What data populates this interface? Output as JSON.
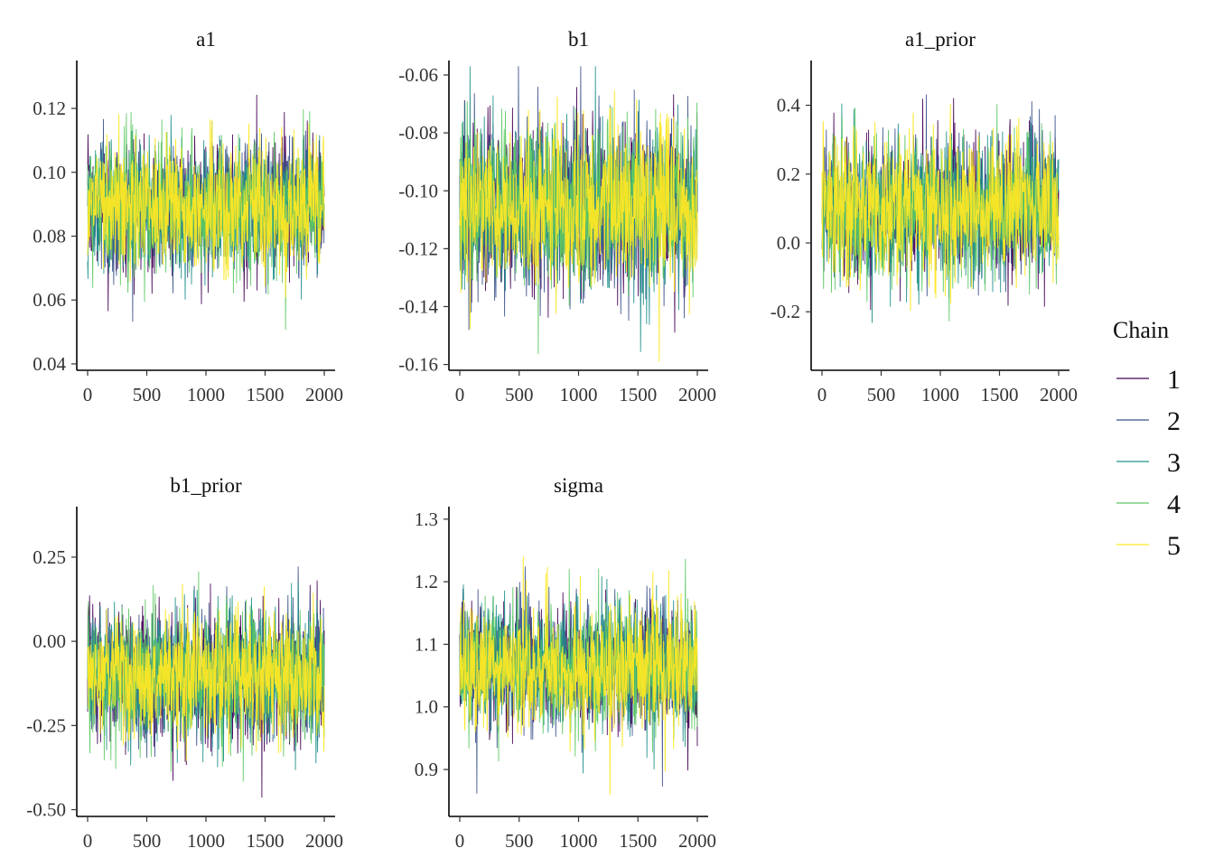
{
  "chart_data": {
    "type": "line",
    "chart_kind": "mcmc-trace",
    "legend": {
      "title": "Chain",
      "placement": "right",
      "entries": [
        {
          "label": "1",
          "color": "#440154"
        },
        {
          "label": "2",
          "color": "#3B528B"
        },
        {
          "label": "3",
          "color": "#21908C"
        },
        {
          "label": "4",
          "color": "#5DC863"
        },
        {
          "label": "5",
          "color": "#FDE725"
        }
      ]
    },
    "panels": [
      {
        "title": "a1",
        "xlim": [
          0,
          2000
        ],
        "ylim": [
          0.038,
          0.135
        ],
        "xticks": [
          0,
          500,
          1000,
          1500,
          2000
        ],
        "yticks": [
          0.04,
          0.06,
          0.08,
          0.1,
          0.12
        ],
        "ytick_labels": [
          "0.04",
          "0.06",
          "0.08",
          "0.10",
          "0.12"
        ],
        "center": 0.089,
        "sd": 0.0105,
        "min": 0.041,
        "max": 0.131
      },
      {
        "title": "b1",
        "xlim": [
          0,
          2000
        ],
        "ylim": [
          -0.162,
          -0.055
        ],
        "xticks": [
          0,
          500,
          1000,
          1500,
          2000
        ],
        "yticks": [
          -0.16,
          -0.14,
          -0.12,
          -0.1,
          -0.08,
          -0.06
        ],
        "ytick_labels": [
          "-0.16",
          "-0.14",
          "-0.12",
          "-0.10",
          "-0.08",
          "-0.06"
        ],
        "center": -0.105,
        "sd": 0.0145,
        "min": -0.159,
        "max": -0.057
      },
      {
        "title": "a1_prior",
        "xlim": [
          0,
          2000
        ],
        "ylim": [
          -0.37,
          0.53
        ],
        "xticks": [
          0,
          500,
          1000,
          1500,
          2000
        ],
        "yticks": [
          -0.2,
          0.0,
          0.2,
          0.4
        ],
        "ytick_labels": [
          "-0.2",
          "0.0",
          "0.2",
          "0.4"
        ],
        "center": 0.1,
        "sd": 0.1,
        "min": -0.33,
        "max": 0.51
      },
      {
        "title": "b1_prior",
        "xlim": [
          0,
          2000
        ],
        "ylim": [
          -0.52,
          0.4
        ],
        "xticks": [
          0,
          500,
          1000,
          1500,
          2000
        ],
        "yticks": [
          -0.5,
          -0.25,
          0.0,
          0.25
        ],
        "ytick_labels": [
          "-0.50",
          "-0.25",
          "0.00",
          "0.25"
        ],
        "center": -0.1,
        "sd": 0.1,
        "min": -0.49,
        "max": 0.37
      },
      {
        "title": "sigma",
        "xlim": [
          0,
          2000
        ],
        "ylim": [
          0.825,
          1.32
        ],
        "xticks": [
          0,
          500,
          1000,
          1500,
          2000
        ],
        "yticks": [
          0.9,
          1.0,
          1.1,
          1.2,
          1.3
        ],
        "ytick_labels": [
          "0.9",
          "1.0",
          "1.1",
          "1.2",
          "1.3"
        ],
        "center": 1.065,
        "sd": 0.05,
        "min": 0.84,
        "max": 1.3
      }
    ]
  }
}
